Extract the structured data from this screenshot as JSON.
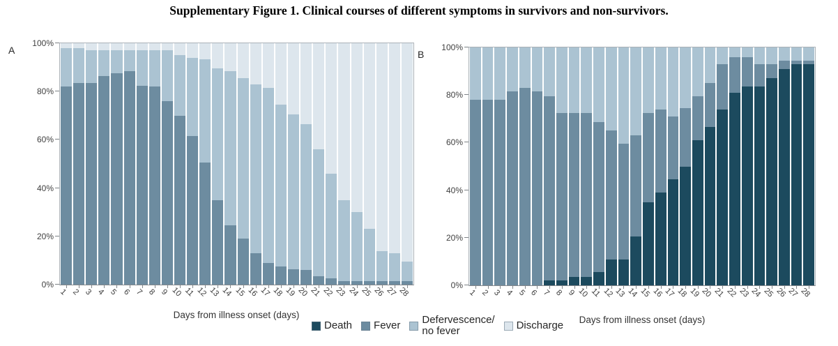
{
  "title": "Supplementary Figure 1. Clinical courses of different symptoms in survivors and non-survivors.",
  "legend": {
    "position": "bottom-center",
    "items": [
      {
        "label": "Death",
        "color": "#1c4a5e"
      },
      {
        "label": "Fever",
        "color": "#6d8ca0"
      },
      {
        "label": "Defervescence/\nno fever",
        "color": "#abc3d2"
      },
      {
        "label": "Discharge",
        "color": "#dde6ed"
      }
    ]
  },
  "chart_data": [
    {
      "type": "bar",
      "stacked": true,
      "panel": "A",
      "xlabel": "Days from illness onset (days)",
      "ylabel": "",
      "x": [
        1,
        2,
        3,
        4,
        5,
        6,
        7,
        8,
        9,
        10,
        11,
        12,
        13,
        14,
        15,
        16,
        17,
        18,
        19,
        20,
        21,
        22,
        23,
        24,
        25,
        26,
        27,
        28
      ],
      "ylim": [
        0,
        100
      ],
      "yticks": [
        "0%",
        "20%",
        "40%",
        "60%",
        "80%",
        "100%"
      ],
      "grid": false,
      "series": [
        {
          "name": "Death",
          "color": "#1c4a5e",
          "values": [
            0,
            0,
            0,
            0,
            0,
            0,
            0,
            0,
            0,
            0,
            0,
            0,
            0,
            0,
            0,
            0,
            0,
            0,
            0,
            0,
            0,
            0,
            0,
            0,
            0,
            0,
            0,
            0
          ]
        },
        {
          "name": "Fever",
          "color": "#6d8ca0",
          "values": [
            82,
            83.5,
            83.5,
            86.5,
            87.5,
            88.5,
            82.5,
            82,
            76,
            70,
            61.5,
            50.5,
            35,
            24.5,
            19,
            13,
            9,
            7.5,
            6.5,
            6,
            3.5,
            2.5,
            1.5,
            1.5,
            1.5,
            1.5,
            1.5,
            1.5
          ]
        },
        {
          "name": "Defervescence/no fever",
          "color": "#abc3d2",
          "values": [
            16,
            14.5,
            13.5,
            10.5,
            9.5,
            8.5,
            14.5,
            15,
            21,
            25,
            32.5,
            43,
            54.5,
            64,
            66.5,
            70,
            72.5,
            67,
            64,
            60.5,
            52.5,
            43.5,
            33.5,
            28.5,
            21.5,
            12.5,
            11.5,
            8
          ]
        },
        {
          "name": "Discharge",
          "color": "#dde6ed",
          "values": [
            2,
            2,
            3,
            3,
            3,
            3,
            3,
            3,
            3,
            5,
            6,
            6.5,
            10.5,
            11.5,
            14.5,
            17,
            18.5,
            25.5,
            29.5,
            33.5,
            44,
            54,
            65,
            70,
            77,
            86,
            87,
            90.5
          ]
        }
      ]
    },
    {
      "type": "bar",
      "stacked": true,
      "panel": "B",
      "xlabel": "Days from illness onset (days)",
      "ylabel": "",
      "x": [
        1,
        2,
        3,
        4,
        5,
        6,
        7,
        8,
        9,
        10,
        11,
        12,
        13,
        14,
        15,
        16,
        17,
        18,
        19,
        20,
        21,
        22,
        23,
        24,
        25,
        26,
        27,
        28
      ],
      "ylim": [
        0,
        100
      ],
      "yticks": [
        "0%",
        "20%",
        "40%",
        "60%",
        "80%",
        "100%"
      ],
      "grid": false,
      "series": [
        {
          "name": "Death",
          "color": "#1c4a5e",
          "values": [
            0,
            0,
            0,
            0,
            0,
            0,
            2,
            2,
            3.5,
            3.5,
            5.5,
            11,
            11,
            20.5,
            35,
            39,
            44.5,
            50,
            61,
            66.5,
            74,
            81,
            83.5,
            83.5,
            87,
            91,
            93,
            93
          ]
        },
        {
          "name": "Fever",
          "color": "#6d8ca0",
          "values": [
            78,
            78,
            78,
            81.5,
            83,
            81.5,
            77.5,
            70.5,
            69,
            69,
            63,
            54,
            48.5,
            42.5,
            37.5,
            35,
            26.5,
            24.5,
            18.5,
            18.5,
            19,
            15,
            12.5,
            9.5,
            6,
            3.5,
            1.5,
            1.5
          ]
        },
        {
          "name": "Defervescence/no fever",
          "color": "#abc3d2",
          "values": [
            22,
            22,
            22,
            18.5,
            17,
            18.5,
            20.5,
            27.5,
            27.5,
            27.5,
            31.5,
            35,
            40.5,
            37,
            27.5,
            26,
            29,
            25.5,
            20.5,
            15,
            7,
            4,
            4,
            7,
            7,
            5.5,
            5.5,
            5.5
          ]
        },
        {
          "name": "Discharge",
          "color": "#dde6ed",
          "values": [
            0,
            0,
            0,
            0,
            0,
            0,
            0,
            0,
            0,
            0,
            0,
            0,
            0,
            0,
            0,
            0,
            0,
            0,
            0,
            0,
            0,
            0,
            0,
            0,
            0,
            0,
            0,
            0
          ]
        }
      ]
    }
  ]
}
